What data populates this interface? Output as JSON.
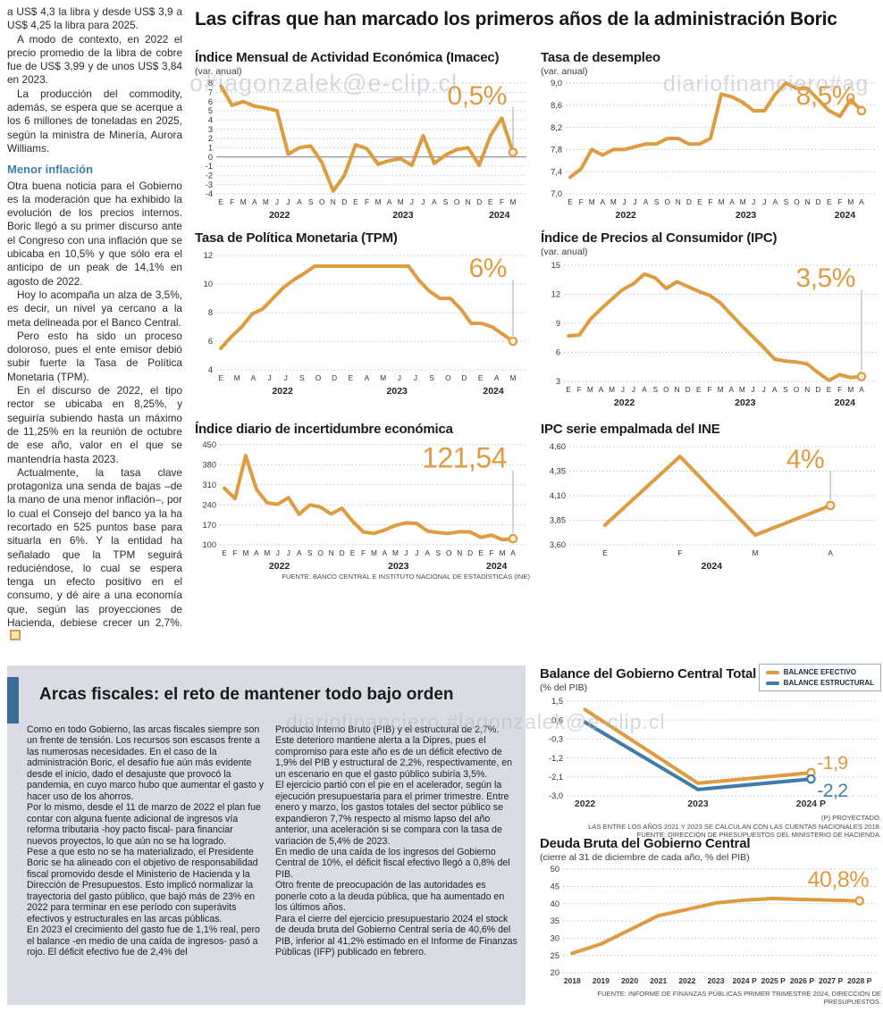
{
  "header": {
    "title": "Las cifras que han marcado los primeros años de la administración Boric"
  },
  "colors": {
    "line_orange": "#DE9B40",
    "line_blue": "#3F7CA8",
    "accent_blue_bar": "#3A6E96",
    "subheading_blue": "#3d7eac",
    "panel_background": "#D9DDE3"
  },
  "watermarks": {
    "w1": "o#iagonzalek@e-clip.cl",
    "w2": "diariofinanciero#ag",
    "w3": "diariofinanciero.#lagonzalek@e-clip.cl"
  },
  "left_column": {
    "paras_before": [
      "a US$ 4,3 la libra y desde US$ 3,9 a US$ 4,25 la libra para 2025.",
      "A modo de contexto, en 2022 el precio promedio de la libra de cobre fue de US$ 3,99 y de unos US$ 3,84 en 2023.",
      "La producción del commodity, además, se espera que se acerque a los 6 millones de toneladas en 2025, según la ministra de Minería, Aurora Williams."
    ],
    "subheading": "Menor inflación",
    "paras_after": [
      "Otra buena noticia para el Gobierno es la moderación que ha exhibido la evolución de los precios internos. Boric llegó a su primer discurso ante el Congreso con una inflación que se ubicaba en 10,5% y que sólo era el anticipo de un peak de 14,1% en agosto de 2022.",
      "Hoy lo acompaña un alza de 3,5%, es decir, un nivel ya cercano a la meta delineada por el Banco Central.",
      "Pero esto ha sido un proceso doloroso, pues el ente emisor debió subir fuerte la Tasa de Política Monetaria (TPM).",
      "En el discurso de 2022, el tipo rector se ubicaba en 8,25%, y seguiría subiendo hasta un máximo de 11,25% en la reunión de octubre de ese año, valor en el que se mantendría hasta 2023.",
      "Actualmente, la tasa clave protagoniza una senda de bajas –de la mano de una menor inflación–, por lo cual el Consejo del banco ya la ha recortado en 525 puntos base para situarla en 6%. Y la entidad ha señalado que la TPM seguirá reduciéndose, lo cual se espera tenga un efecto positivo en el consumo, y dé aire a una economía que, según las proyecciones de Hacienda, debiese crecer un 2,7%."
    ]
  },
  "panel": {
    "title": "Arcas fiscales: el reto de mantener todo bajo orden",
    "col1": [
      "Como en todo Gobierno, las arcas fiscales siempre son un frente de tensión. Los recursos son escasos frente a las numerosas necesidades. En el caso de la administración Boric, el desafío fue aún más evidente desde el inicio, dado el desajuste que provocó la pandemia, en cuyo marco hubo que aumentar el gasto y hacer uso de los ahorros.",
      "Por lo mismo, desde el 11 de marzo de 2022 el plan fue contar con alguna fuente adicional de ingresos vía reforma tributaria -hoy pacto fiscal- para financiar nuevos proyectos, lo que aún no se ha logrado.",
      "Pese a que esto no se ha materializado, el Presidente Boric se ha alineado con el objetivo de responsabilidad fiscal promovido desde el Ministerio de Hacienda y la Dirección de Presupuestos. Esto implicó normalizar la trayectoria del gasto público, que bajó más de 23% en 2022 para terminar en ese período con superávits efectivos y estructurales en las arcas públicas.",
      "En 2023 el crecimiento del gasto fue de 1,1% real, pero el balance -en medio de una caída de ingresos- pasó a rojo. El déficit efectivo fue de 2,4% del"
    ],
    "col2": [
      "Producto Interno Bruto (PIB) y el estructural de 2,7%. Este deterioro mantiene alerta a la Dipres, pues el compromiso para este año es de un déficit efectivo de 1,9% del PIB y estructural de 2,2%, respectivamente, en un escenario en que el gasto público subiría 3,5%.",
      "El ejercicio partió con el pie en el acelerador, según la ejecución presupuestaria para el primer trimestre. Entre enero y marzo, los gastos totales del sector público se expandieron 7,7% respecto al mismo lapso del año anterior, una aceleración si se compara con la tasa de variación de 5,4% de 2023.",
      "En medio de una caída de los ingresos del Gobierno Central de 10%, el déficit fiscal efectivo llegó a 0,8% del PIB.",
      "Otro frente de preocupación de las autoridades es ponerle coto a la deuda pública, que ha aumentado en los últimos años.",
      "Para el cierre del ejercicio presupuestario 2024 el stock de deuda bruta del Gobierno Central sería de 40,6% del PIB, inferior al 41,2% estimado en el Informe de Finanzas Públicas (IFP) publicado en febrero."
    ]
  },
  "chart_data": [
    {
      "type": "line",
      "title": "Índice Mensual de Actividad Económica (Imacec)",
      "subtitle": "(var. anual)",
      "color": "#DE9B40",
      "ylim": [
        -4,
        8
      ],
      "yticks": [
        "8",
        "7",
        "6",
        "5",
        "4",
        "3",
        "2",
        "1",
        "0",
        "-1",
        "-2",
        "-3",
        "-4"
      ],
      "zero_solid": true,
      "xticks": [
        "E",
        "F",
        "M",
        "A",
        "M",
        "J",
        "J",
        "A",
        "S",
        "O",
        "N",
        "D",
        "E",
        "F",
        "M",
        "A",
        "M",
        "J",
        "J",
        "A",
        "S",
        "O",
        "N",
        "D",
        "E",
        "F",
        "M"
      ],
      "years": [
        {
          "label": "2022",
          "f": 0.21
        },
        {
          "label": "2023",
          "f": 0.62
        },
        {
          "label": "2024",
          "f": 0.94
        }
      ],
      "values": [
        7.7,
        5.6,
        6.0,
        5.5,
        5.3,
        5.0,
        0.3,
        1.0,
        1.2,
        -0.6,
        -3.7,
        -2.0,
        1.3,
        0.9,
        -0.8,
        -0.4,
        -0.2,
        -0.9,
        2.3,
        -0.7,
        0.2,
        0.8,
        1.0,
        -0.9,
        2.3,
        4.2,
        0.5
      ],
      "callout": {
        "text": "0,5%",
        "size": 30,
        "line": true
      },
      "margins": {
        "l": 24,
        "r": 14,
        "t": 6,
        "b": 30
      }
    },
    {
      "type": "line",
      "title": "Tasa de desempleo",
      "subtitle": "(var. anual)",
      "color": "#DE9B40",
      "ylim": [
        7.0,
        9.0
      ],
      "yticks": [
        "9,0",
        "8,6",
        "8,2",
        "7,8",
        "7,4",
        "7,0"
      ],
      "xticks": [
        "E",
        "F",
        "M",
        "A",
        "M",
        "J",
        "J",
        "A",
        "S",
        "O",
        "N",
        "D",
        "E",
        "F",
        "M",
        "A",
        "M",
        "J",
        "J",
        "A",
        "S",
        "O",
        "N",
        "D",
        "E",
        "F",
        "M",
        "A"
      ],
      "years": [
        {
          "label": "2022",
          "f": 0.2
        },
        {
          "label": "2023",
          "f": 0.6
        },
        {
          "label": "2024",
          "f": 0.93
        }
      ],
      "values": [
        7.3,
        7.45,
        7.8,
        7.7,
        7.8,
        7.8,
        7.85,
        7.9,
        7.9,
        8.0,
        8.0,
        7.9,
        7.9,
        8.0,
        8.8,
        8.75,
        8.65,
        8.5,
        8.5,
        8.8,
        9.0,
        8.9,
        8.9,
        8.7,
        8.5,
        8.4,
        8.7,
        8.5
      ],
      "callout": {
        "text": "8,5%",
        "size": 30,
        "line": true
      },
      "margins": {
        "l": 28,
        "r": 16,
        "t": 6,
        "b": 30
      }
    },
    {
      "type": "line",
      "title": "Tasa de Política Monetaria (TPM)",
      "subtitle": "",
      "color": "#DE9B40",
      "ylim": [
        4,
        12
      ],
      "yticks": [
        "12",
        "10",
        "8",
        "6",
        "4"
      ],
      "xticks": [
        "E",
        "M",
        "A",
        "J",
        "J",
        "S",
        "O",
        "D",
        "E",
        "A",
        "M",
        "J",
        "J",
        "S",
        "O",
        "D",
        "E",
        "A",
        "M"
      ],
      "years": [
        {
          "label": "2022",
          "f": 0.22
        },
        {
          "label": "2023",
          "f": 0.6
        },
        {
          "label": "2024",
          "f": 0.92
        }
      ],
      "values": [
        5.5,
        6.3,
        7.0,
        7.9,
        8.25,
        9.0,
        9.75,
        10.3,
        10.75,
        11.25,
        11.25,
        11.25,
        11.25,
        11.25,
        11.25,
        11.25,
        11.25,
        11.25,
        11.25,
        10.25,
        9.5,
        9.0,
        9.0,
        8.25,
        7.25,
        7.25,
        7.0,
        6.5,
        6.0
      ],
      "callout": {
        "text": "6%",
        "size": 30,
        "line": true
      },
      "margins": {
        "l": 24,
        "r": 14,
        "t": 10,
        "b": 30
      }
    },
    {
      "type": "line",
      "title": "Índice de Precios al Consumidor (IPC)",
      "subtitle": "(var. anual)",
      "color": "#DE9B40",
      "ylim": [
        3,
        15
      ],
      "yticks": [
        "15",
        "12",
        "9",
        "6",
        "3"
      ],
      "xticks": [
        "E",
        "F",
        "M",
        "A",
        "M",
        "J",
        "J",
        "A",
        "S",
        "O",
        "N",
        "D",
        "E",
        "F",
        "M",
        "A",
        "M",
        "J",
        "J",
        "A",
        "S",
        "O",
        "N",
        "D",
        "E",
        "F",
        "M",
        "A"
      ],
      "years": [
        {
          "label": "2022",
          "f": 0.2
        },
        {
          "label": "2023",
          "f": 0.6
        },
        {
          "label": "2024",
          "f": 0.93
        }
      ],
      "values": [
        7.7,
        7.8,
        9.4,
        10.5,
        11.5,
        12.5,
        13.1,
        14.1,
        13.7,
        12.6,
        13.3,
        12.8,
        12.3,
        11.9,
        11.1,
        9.9,
        8.7,
        7.6,
        6.5,
        5.3,
        5.1,
        5.0,
        4.8,
        3.9,
        3.1,
        3.7,
        3.4,
        3.5
      ],
      "callout": {
        "text": "3,5%",
        "size": 30,
        "line": true
      },
      "margins": {
        "l": 26,
        "r": 16,
        "t": 8,
        "b": 30
      }
    },
    {
      "type": "line",
      "title": "Índice diario de incertidumbre económica",
      "subtitle": "",
      "color": "#DE9B40",
      "ylim": [
        100,
        450
      ],
      "yticks": [
        "450",
        "380",
        "310",
        "240",
        "170",
        "100"
      ],
      "xticks": [
        "E",
        "F",
        "M",
        "A",
        "M",
        "J",
        "J",
        "A",
        "S",
        "O",
        "N",
        "D",
        "E",
        "F",
        "M",
        "A",
        "M",
        "J",
        "J",
        "A",
        "S",
        "O",
        "N",
        "D",
        "E",
        "F",
        "M",
        "A"
      ],
      "years": [
        {
          "label": "2022",
          "f": 0.2
        },
        {
          "label": "2023",
          "f": 0.6
        },
        {
          "label": "2024",
          "f": 0.93
        }
      ],
      "values": [
        298,
        262,
        412,
        295,
        247,
        242,
        265,
        207,
        240,
        232,
        208,
        228,
        182,
        145,
        140,
        152,
        168,
        177,
        175,
        148,
        143,
        140,
        146,
        145,
        126,
        134,
        118,
        121.54
      ],
      "callout": {
        "text": "121,54",
        "size": 32,
        "line": true
      },
      "source": "FUENTE: BANCO CENTRAL E INSTITUTO NACIONAL DE ESTADÍSTICAS (INE)",
      "margins": {
        "l": 28,
        "r": 14,
        "t": 8,
        "b": 30
      }
    },
    {
      "type": "line",
      "title": "IPC serie empalmada del INE",
      "subtitle": "",
      "color": "#DE9B40",
      "ylim": [
        3.6,
        4.6
      ],
      "yticks": [
        "4,60",
        "4,35",
        "4,10",
        "3,85",
        "3,60"
      ],
      "xticks": [
        "E",
        "F",
        "M",
        "A"
      ],
      "years": [
        {
          "label": "2024",
          "f": 0.48
        }
      ],
      "values": [
        3.8,
        4.5,
        3.7,
        4.0
      ],
      "xpad": 0.12,
      "callout": {
        "text": "4%",
        "size": 30,
        "line": true
      },
      "margins": {
        "l": 32,
        "r": 16,
        "t": 10,
        "b": 30
      }
    },
    {
      "type": "line",
      "title": "Balance del Gobierno Central Total",
      "subtitle": "(% del PIB)",
      "ylim": [
        -3.0,
        1.5
      ],
      "yticks": [
        "1,5",
        "0,6",
        "-0,3",
        "-1,2",
        "-2,1",
        "-3,0"
      ],
      "xticks": [
        "2022",
        "2023",
        "2024 P"
      ],
      "xtick_size": 10.5,
      "xtick_bold": true,
      "xpad": 0.07,
      "end_label_size": 21,
      "legend": [
        {
          "label": "BALANCE EFECTIVO",
          "style": "background:#DE9B40"
        },
        {
          "label": "BALANCE ESTRUCTURAL",
          "style": "background:#3F7CA8"
        }
      ],
      "series": [
        {
          "name": "BALANCE EFECTIVO",
          "color": "#DE9B40",
          "values": [
            1.1,
            -2.4,
            -1.9
          ],
          "end_label": "-1,9",
          "label_dy": -4
        },
        {
          "name": "BALANCE ESTRUCTURAL",
          "color": "#3F7CA8",
          "values": [
            0.5,
            -2.7,
            -2.2
          ],
          "end_label": "-2,2",
          "label_dy": 20
        }
      ],
      "notes": [
        "(P) PROYECTADO.",
        "LAS ENTRE LOS AÑOS 2021 Y 2023 SE CALCULAN CON LAS CUENTAS NACIONALES 2018.",
        "FUENTE: DIRECCIÓN DE PRESUPUESTOS DEL MINISTERIO DE HACIENDA."
      ],
      "margins": {
        "l": 30,
        "r": 58,
        "t": 8,
        "b": 18
      }
    },
    {
      "type": "line",
      "title": "Deuda Bruta del Gobierno Central",
      "subtitle": "(cierre al 31 de diciembre de cada año, % del PIB)",
      "color": "#DE9B40",
      "ylim": [
        20,
        50
      ],
      "yticks": [
        "50",
        "45",
        "40",
        "35",
        "30",
        "25",
        "20"
      ],
      "xticks": [
        "2018",
        "2019",
        "2020",
        "2021",
        "2022",
        "2023",
        "2024 P",
        "2025 P",
        "2026 P",
        "2027 P",
        "2028 P"
      ],
      "xtick_size": 8.6,
      "xtick_bold": true,
      "xpad": 0.03,
      "values": [
        25.6,
        28.3,
        32.4,
        36.5,
        38.3,
        40.2,
        41.0,
        41.5,
        41.2,
        41.0,
        40.8
      ],
      "callout": {
        "text": "40,8%",
        "size": 25,
        "line": false,
        "x_end": true
      },
      "source": "FUENTE: INFORME DE FINANZAS PÚBLICAS PRIMER TRIMESTRE 2024, DIRECCIÓN DE PRESUPUESTOS.",
      "margins": {
        "l": 26,
        "r": 14,
        "t": 6,
        "b": 18
      }
    }
  ]
}
